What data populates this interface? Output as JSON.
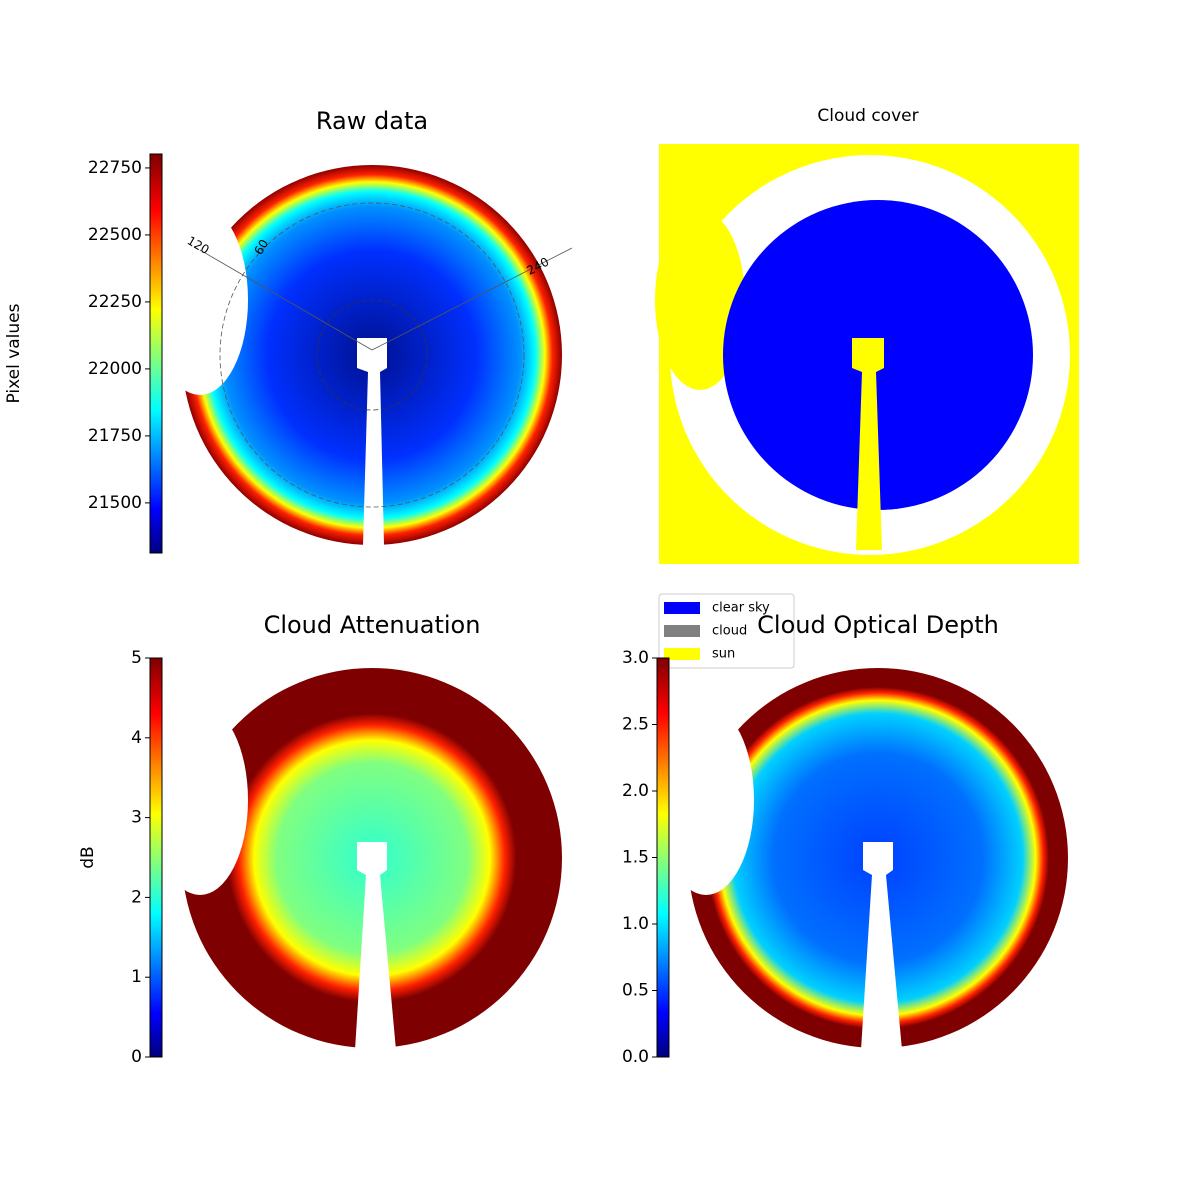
{
  "chart_data": [
    {
      "type": "image",
      "title": "Raw data",
      "colorbar_label": "Pixel values",
      "clim": [
        21313,
        22802
      ],
      "cticks": [
        21500,
        21750,
        22000,
        22250,
        22500,
        22750
      ],
      "annotations": [
        "120",
        "60",
        "240"
      ]
    },
    {
      "type": "image",
      "title": "Cloud cover",
      "legend": [
        {
          "name": "clear sky",
          "color": "#0000ff"
        },
        {
          "name": "cloud",
          "color": "#808080"
        },
        {
          "name": "sun",
          "color": "#ffff00"
        }
      ]
    },
    {
      "type": "image",
      "title": "Cloud Attenuation",
      "colorbar_label": "dB",
      "clim": [
        0,
        5
      ],
      "cticks": [
        0,
        1,
        2,
        3,
        4,
        5
      ]
    },
    {
      "type": "image",
      "title": "Cloud Optical Depth",
      "clim": [
        0,
        3
      ],
      "cticks": [
        {
          "value": 0,
          "label": "0.0"
        },
        0.5,
        {
          "value": 1,
          "label": "1.0"
        },
        1.5,
        {
          "value": 2,
          "label": "2.0"
        },
        2.5,
        {
          "value": 3,
          "label": "3.0"
        }
      ]
    }
  ]
}
